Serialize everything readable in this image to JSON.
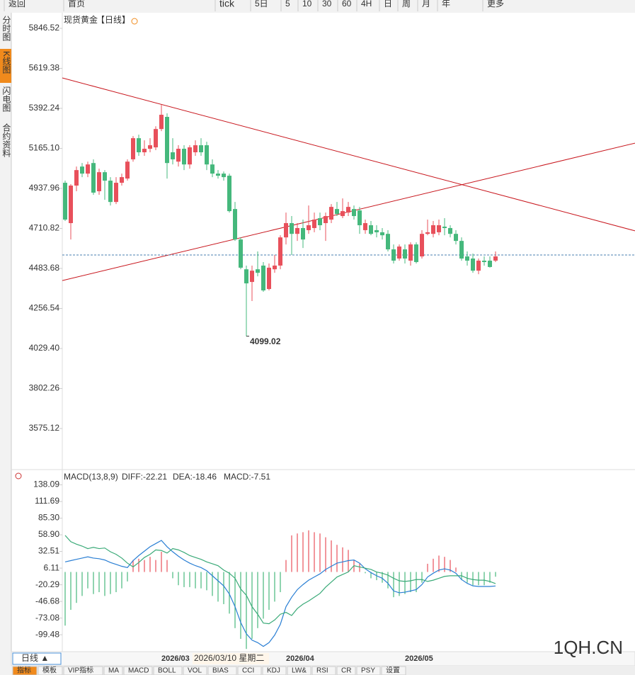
{
  "toolbar": [
    "返回",
    "首页",
    "tick",
    "5日",
    "5",
    "10",
    "30",
    "60",
    "4H",
    "日",
    "周",
    "月",
    "年",
    "更多"
  ],
  "sidebar": [
    "分时图",
    "K线图",
    "闪电图",
    "合约资料"
  ],
  "chart_data": [
    {
      "type": "candlestick",
      "title": "现货黄金",
      "period": "【日线】",
      "categories": [
        null,
        null,
        null,
        null,
        null,
        null,
        null,
        null,
        null,
        null,
        null,
        null,
        null,
        null,
        null,
        null,
        null,
        "2026/03",
        null,
        null,
        null,
        null,
        null,
        null,
        null,
        null,
        null,
        null,
        null,
        null,
        null,
        null,
        null,
        null,
        null,
        null,
        null,
        null,
        null,
        "2026/04",
        null,
        null,
        null,
        null,
        null,
        null,
        null,
        null,
        null,
        null,
        null,
        null,
        null,
        null,
        null,
        null,
        null,
        null,
        null,
        null,
        "2026/05",
        null,
        null,
        null,
        null,
        null,
        null,
        null,
        null,
        null,
        null,
        null,
        null,
        null,
        null,
        null,
        null
      ],
      "open": [
        4970,
        4741,
        4954,
        5062,
        5022,
        5082,
        4922,
        5030,
        4982,
        4861,
        4970,
        4994,
        5103,
        5223,
        5143,
        5163,
        5171,
        5275,
        5344,
        5143,
        5090,
        5163,
        5074,
        5143,
        5183,
        5183,
        5074,
        5022,
        5022,
        5010,
        4821,
        4648,
        4479,
        4407,
        4479,
        4500,
        4367,
        4479,
        4500,
        4660,
        4741,
        4680,
        4713,
        4701,
        4713,
        4769,
        4741,
        4761,
        4821,
        4781,
        4801,
        4821,
        4813,
        4701,
        4729,
        4701,
        4689,
        4680,
        4592,
        4540,
        4592,
        4528,
        4620,
        4552,
        4680,
        4680,
        4689,
        4721,
        4713,
        4680,
        4640,
        4552,
        4540,
        4471,
        4528,
        4528,
        4528
      ],
      "high": [
        4982,
        4962,
        5062,
        5082,
        5090,
        5103,
        5050,
        5042,
        5002,
        5002,
        5022,
        5103,
        5235,
        5243,
        5211,
        5223,
        5291,
        5412,
        5364,
        5223,
        5183,
        5183,
        5183,
        5211,
        5223,
        5203,
        5103,
        5042,
        5034,
        5022,
        4861,
        4660,
        4500,
        4500,
        4580,
        4520,
        4512,
        4560,
        4672,
        4801,
        4781,
        4741,
        4761,
        4841,
        4801,
        4801,
        4801,
        4849,
        4861,
        4881,
        4861,
        4841,
        4833,
        4761,
        4753,
        4729,
        4713,
        4701,
        4620,
        4620,
        4620,
        4632,
        4632,
        4701,
        4761,
        4753,
        4761,
        4769,
        4729,
        4701,
        4660,
        4580,
        4568,
        4540,
        4552,
        4552,
        4580
      ],
      "low": [
        4753,
        4648,
        4922,
        5002,
        5002,
        4902,
        4902,
        4873,
        4841,
        4849,
        4954,
        4982,
        5090,
        5123,
        5123,
        5143,
        5155,
        5263,
        4994,
        5074,
        5062,
        5042,
        5050,
        5123,
        5123,
        5042,
        5002,
        4994,
        4982,
        4801,
        4640,
        4479,
        4099.02,
        4299,
        4439,
        4351,
        4359,
        4459,
        4479,
        4620,
        4560,
        4640,
        4600,
        4680,
        4689,
        4701,
        4640,
        4741,
        4781,
        4769,
        4781,
        4761,
        4680,
        4680,
        4672,
        4660,
        4648,
        4580,
        4512,
        4528,
        4512,
        4500,
        4512,
        4540,
        4672,
        4660,
        4672,
        4672,
        4660,
        4620,
        4528,
        4500,
        4459,
        4451,
        4500,
        4488,
        4520
      ],
      "close": [
        4761,
        4954,
        5042,
        5022,
        5074,
        4914,
        5030,
        4982,
        4861,
        4970,
        5002,
        5090,
        5223,
        5143,
        5163,
        5183,
        5275,
        5356,
        5082,
        5103,
        5163,
        5074,
        5171,
        5183,
        5143,
        5074,
        5022,
        5010,
        5002,
        4809,
        4648,
        4488,
        4399,
        4471,
        4459,
        4359,
        4488,
        4500,
        4660,
        4741,
        4680,
        4713,
        4648,
        4729,
        4761,
        4729,
        4781,
        4833,
        4793,
        4809,
        4833,
        4781,
        4729,
        4741,
        4680,
        4689,
        4672,
        4592,
        4528,
        4608,
        4540,
        4620,
        4520,
        4680,
        4689,
        4729,
        4729,
        4713,
        4680,
        4640,
        4540,
        4528,
        4471,
        4528,
        4520,
        4492,
        4552
      ],
      "up_color": "#e8505b",
      "down_color": "#45b87c",
      "ylim": [
        3346,
        5935
      ],
      "yticks": [
        5846.52,
        5619.38,
        5392.24,
        {
          "value": 5165.1,
          "label": "5165.10"
        },
        4937.96,
        4710.82,
        4483.68,
        4256.54,
        {
          "value": 4029.4,
          "label": "4029.40"
        },
        3802.26,
        3575.12
      ],
      "last_price": 4560,
      "trendlines": [
        {
          "start": 5565,
          "end": 4697,
          "color": "#c8161d"
        },
        {
          "start": 4415,
          "end": 5195,
          "color": "#c8161d"
        }
      ]
    },
    {
      "type": "macd",
      "title": "MACD(13,8,9)",
      "legend_labels": [
        "DIFF:-22.21",
        "DEA:-18.46",
        "MACD:-7.51"
      ],
      "series": [
        {
          "name": "DIFF",
          "color": "#2a7fd4",
          "values": [
            16,
            18,
            20,
            22,
            24,
            22,
            21,
            19,
            15,
            12,
            9,
            7,
            18,
            26,
            33,
            40,
            45,
            50,
            40,
            32,
            25,
            19,
            14,
            10,
            7,
            2,
            -6,
            -14,
            -22,
            -35,
            -55,
            -80,
            -98,
            -108,
            -112,
            -118,
            -112,
            -100,
            -83,
            -55,
            -40,
            -28,
            -20,
            -13,
            -8,
            -3,
            4,
            9,
            14,
            16,
            18,
            19,
            14,
            5,
            -1,
            -6,
            -10,
            -18,
            -30,
            -33,
            -32,
            -30,
            -28,
            -20,
            -8,
            -2,
            3,
            5,
            3,
            -2,
            -12,
            -18,
            -22,
            -23,
            -23,
            -23,
            -22.21
          ]
        },
        {
          "name": "DEA",
          "color": "#3aaa78",
          "values": [
            58,
            48,
            44,
            41,
            37,
            39,
            37,
            38,
            32,
            28,
            22,
            14,
            8,
            15,
            23,
            28,
            35,
            34,
            30,
            37,
            35,
            31,
            26,
            23,
            20,
            16,
            13,
            10,
            3,
            -2,
            -10,
            -27,
            -37,
            -55,
            -67,
            -81,
            -82,
            -76,
            -67,
            -64,
            -69,
            -58,
            -51,
            -46,
            -40,
            -34,
            -24,
            -16,
            -8,
            -4,
            0,
            10,
            8,
            6,
            4,
            0,
            -2,
            -5,
            -10,
            -14,
            -15,
            -14,
            -12,
            -12,
            -15,
            -13,
            -10,
            -7,
            -6,
            -6,
            -6,
            -10,
            -12,
            -13,
            -13,
            -15,
            -18.46
          ]
        }
      ],
      "histogram": [
        -85,
        -60,
        -49,
        -38,
        -26,
        -35,
        -32,
        -38,
        -35,
        -32,
        -26,
        -15,
        19,
        21,
        19,
        24,
        19,
        32,
        19,
        -10,
        -21,
        -24,
        -24,
        -26,
        -26,
        -29,
        -38,
        -47,
        -51,
        -66,
        -89,
        -106,
        -122,
        -106,
        -89,
        -74,
        -60,
        -47,
        -32,
        19,
        58,
        61,
        63,
        66,
        63,
        61,
        55,
        50,
        43,
        39,
        35,
        19,
        13,
        -2,
        -10,
        -13,
        -17,
        -26,
        -40,
        -38,
        -35,
        -32,
        -32,
        -17,
        13,
        21,
        26,
        24,
        19,
        7,
        -13,
        -17,
        -21,
        -21,
        -21,
        -17,
        -7.51
      ],
      "up_color": "#e8505b",
      "down_color": "#45b87c",
      "ylim": [
        -124,
        160
      ],
      "yticks": [
        138.09,
        111.69,
        {
          "value": 85.3,
          "label": "85.30"
        },
        {
          "value": 58.9,
          "label": "58.90"
        },
        32.51,
        6.11,
        -20.29,
        -46.68,
        -73.08,
        -99.48
      ]
    }
  ],
  "footer": {
    "period_tab": "日线 ▲",
    "crosshair_label": "2026/03/10 星期二",
    "tabs": [
      "指标",
      "模板",
      "VIP指标",
      "MA",
      "MACD",
      "BOLL",
      "VOL",
      "BIAS",
      "CCI",
      "KDJ",
      "LW&",
      "RSI",
      "CR",
      "PSY",
      "设置"
    ],
    "watermark": "1QH.CN"
  }
}
